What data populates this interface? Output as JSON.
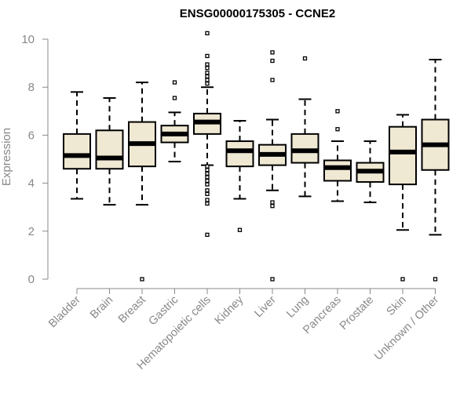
{
  "chart_data": {
    "type": "boxplot",
    "title": "ENSG00000175305 - CCNE2",
    "xlabel": "",
    "ylabel": "Expression",
    "ylim": [
      0,
      10
    ],
    "yticks": [
      0,
      2,
      4,
      6,
      8,
      10
    ],
    "grid": false,
    "box_color": "#efe8d2",
    "categories": [
      "Bladder",
      "Brain",
      "Breast",
      "Gastric",
      "Hematopoietic cells",
      "Kidney",
      "Liver",
      "Lung",
      "Pancreas",
      "Prostate",
      "Skin",
      "Unknown / Other"
    ],
    "series": [
      {
        "category": "Bladder",
        "min": 3.35,
        "q1": 4.6,
        "median": 5.15,
        "q3": 6.05,
        "max": 7.8,
        "outliers": []
      },
      {
        "category": "Brain",
        "min": 3.1,
        "q1": 4.6,
        "median": 5.05,
        "q3": 6.2,
        "max": 7.55,
        "outliers": []
      },
      {
        "category": "Breast",
        "min": 3.1,
        "q1": 4.7,
        "median": 5.65,
        "q3": 6.55,
        "max": 8.2,
        "outliers": [
          0
        ]
      },
      {
        "category": "Gastric",
        "min": 4.9,
        "q1": 5.7,
        "median": 6.05,
        "q3": 6.4,
        "max": 6.95,
        "outliers": [
          8.2,
          7.55
        ]
      },
      {
        "category": "Hematopoietic cells",
        "min": 4.75,
        "q1": 6.05,
        "median": 6.55,
        "q3": 6.9,
        "max": 8.0,
        "outliers": [
          10.25,
          9.3,
          8.95,
          8.8,
          8.6,
          8.45,
          8.3,
          8.15,
          4.7,
          4.55,
          4.4,
          4.25,
          4.1,
          3.95,
          3.7,
          3.55,
          3.3,
          3.15,
          1.85
        ]
      },
      {
        "category": "Kidney",
        "min": 3.35,
        "q1": 4.7,
        "median": 5.35,
        "q3": 5.75,
        "max": 6.6,
        "outliers": [
          2.05
        ]
      },
      {
        "category": "Liver",
        "min": 3.7,
        "q1": 4.75,
        "median": 5.2,
        "q3": 5.6,
        "max": 6.65,
        "outliers": [
          9.45,
          9.1,
          8.3,
          3.2,
          3.05,
          0
        ]
      },
      {
        "category": "Lung",
        "min": 3.45,
        "q1": 4.85,
        "median": 5.35,
        "q3": 6.05,
        "max": 7.5,
        "outliers": [
          9.2
        ]
      },
      {
        "category": "Pancreas",
        "min": 3.25,
        "q1": 4.1,
        "median": 4.65,
        "q3": 4.95,
        "max": 5.75,
        "outliers": [
          7.0,
          6.25
        ]
      },
      {
        "category": "Prostate",
        "min": 3.2,
        "q1": 4.05,
        "median": 4.5,
        "q3": 4.85,
        "max": 5.75,
        "outliers": []
      },
      {
        "category": "Skin",
        "min": 2.05,
        "q1": 3.95,
        "median": 5.3,
        "q3": 6.35,
        "max": 6.85,
        "outliers": [
          0
        ]
      },
      {
        "category": "Unknown / Other",
        "min": 1.85,
        "q1": 4.55,
        "median": 5.6,
        "q3": 6.65,
        "max": 9.15,
        "outliers": [
          0
        ]
      }
    ]
  }
}
